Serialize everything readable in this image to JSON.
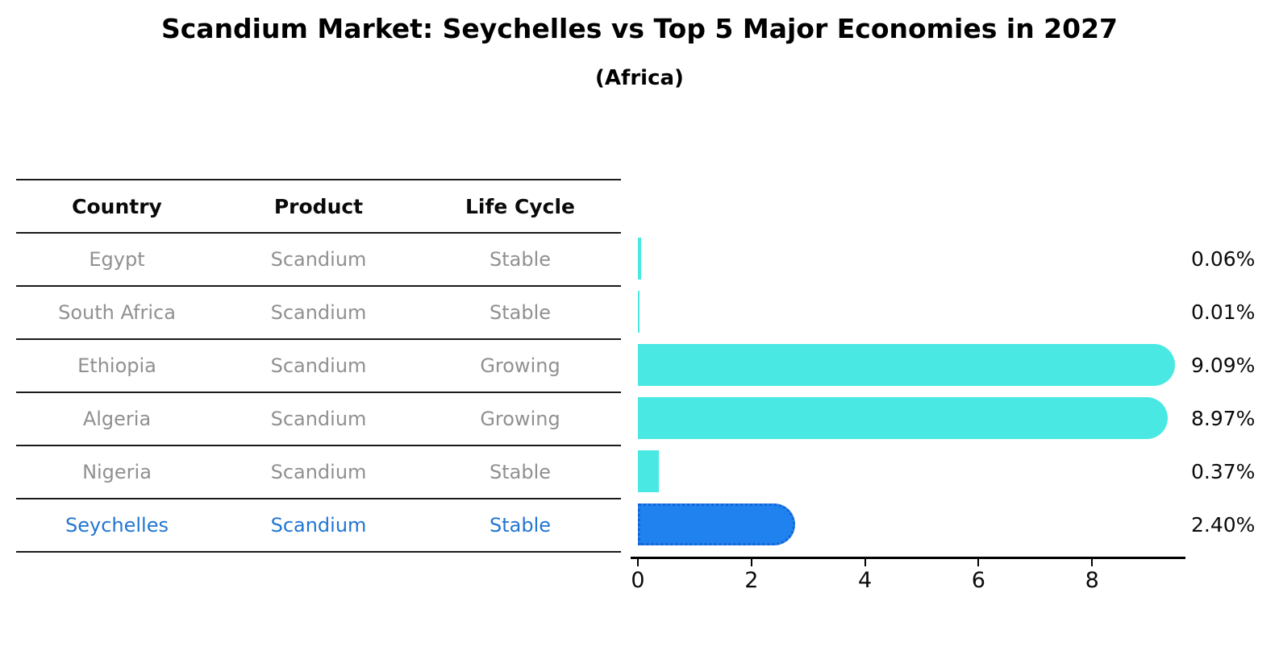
{
  "title": "Scandium Market: Seychelles vs Top 5 Major Economies in 2027",
  "subtitle": "(Africa)",
  "table": {
    "headers": [
      "Country",
      "Product",
      "Life Cycle"
    ],
    "rows": [
      {
        "country": "Egypt",
        "product": "Scandium",
        "life_cycle": "Stable",
        "highlight": false
      },
      {
        "country": "South Africa",
        "product": "Scandium",
        "life_cycle": "Stable",
        "highlight": false
      },
      {
        "country": "Ethiopia",
        "product": "Scandium",
        "life_cycle": "Growing",
        "highlight": false
      },
      {
        "country": "Algeria",
        "product": "Scandium",
        "life_cycle": "Growing",
        "highlight": false
      },
      {
        "country": "Nigeria",
        "product": "Scandium",
        "life_cycle": "Stable",
        "highlight": false
      },
      {
        "country": "Seychelles",
        "product": "Scandium",
        "life_cycle": "Stable",
        "highlight": true
      }
    ]
  },
  "chart_data": {
    "type": "bar",
    "orientation": "horizontal",
    "title": "Scandium Market: Seychelles vs Top 5 Major Economies in 2027 (Africa)",
    "categories": [
      "Egypt",
      "South Africa",
      "Ethiopia",
      "Algeria",
      "Nigeria",
      "Seychelles"
    ],
    "values": [
      0.06,
      0.01,
      9.09,
      8.97,
      0.37,
      2.4
    ],
    "value_labels": [
      "0.06%",
      "0.01%",
      "9.09%",
      "8.97%",
      "0.37%",
      "2.40%"
    ],
    "xlabel": "",
    "ylabel": "",
    "xlim": [
      0,
      9.6
    ],
    "xticks": [
      0,
      2,
      4,
      6,
      8
    ],
    "grid": false,
    "legend": false,
    "colors": {
      "bar_default": "#49e8e3",
      "bar_highlight": "#1f82ee",
      "bar_highlight_border": "#1564d6",
      "highlight_text": "#2176d2",
      "table_text": "#909090",
      "axis_text": "#0a0a0a"
    }
  }
}
